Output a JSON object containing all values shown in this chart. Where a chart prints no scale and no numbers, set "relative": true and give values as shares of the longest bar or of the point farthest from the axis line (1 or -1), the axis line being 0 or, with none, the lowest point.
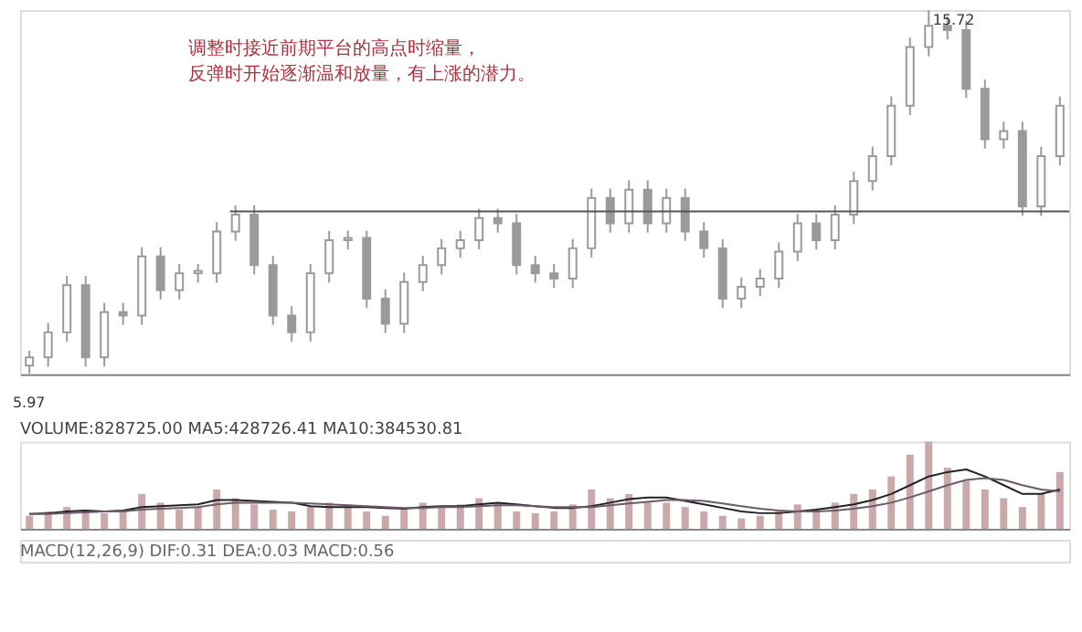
{
  "chart_data": [
    {
      "type": "candlestick",
      "categories": [
        null,
        null,
        null,
        null,
        null,
        null,
        null,
        null,
        null,
        null,
        null,
        null,
        null,
        null,
        null,
        null,
        null,
        null,
        null,
        null,
        null,
        null,
        null,
        null,
        null,
        null,
        null,
        null,
        null,
        null,
        null,
        null,
        null,
        null,
        null,
        null,
        null,
        null,
        null,
        null,
        null,
        null,
        null,
        null,
        null,
        null,
        null,
        null,
        null,
        null,
        null,
        null,
        null,
        null,
        null,
        null
      ],
      "series": [
        {
          "color": "#9a9a9a",
          "ohlc": [
            [
              6.2,
              6.6,
              5.97,
              6.42
            ],
            [
              6.42,
              7.34,
              6.17,
              7.09
            ],
            [
              7.09,
              8.6,
              6.84,
              8.35
            ],
            [
              8.35,
              8.6,
              6.17,
              6.42
            ],
            [
              6.42,
              7.88,
              6.17,
              7.63
            ],
            [
              7.63,
              7.88,
              7.29,
              7.54
            ],
            [
              7.54,
              9.37,
              7.29,
              9.12
            ],
            [
              9.12,
              9.37,
              7.97,
              8.22
            ],
            [
              8.22,
              8.92,
              7.97,
              8.67
            ],
            [
              8.67,
              8.92,
              8.42,
              8.74
            ],
            [
              8.67,
              10.04,
              8.42,
              9.79
            ],
            [
              9.79,
              10.49,
              9.54,
              10.24
            ],
            [
              10.24,
              10.49,
              8.64,
              8.89
            ],
            [
              8.89,
              9.14,
              7.29,
              7.54
            ],
            [
              7.54,
              7.79,
              6.84,
              7.09
            ],
            [
              7.09,
              8.92,
              6.84,
              8.67
            ],
            [
              8.67,
              9.81,
              8.42,
              9.56
            ],
            [
              9.56,
              9.81,
              9.31,
              9.62
            ],
            [
              9.62,
              9.81,
              7.74,
              7.99
            ],
            [
              7.99,
              8.24,
              7.07,
              7.32
            ],
            [
              7.32,
              8.69,
              7.07,
              8.44
            ],
            [
              8.44,
              9.14,
              8.19,
              8.89
            ],
            [
              8.89,
              9.59,
              8.64,
              9.34
            ],
            [
              9.34,
              9.81,
              9.09,
              9.56
            ],
            [
              9.56,
              10.4,
              9.31,
              10.15
            ],
            [
              10.15,
              10.4,
              9.76,
              10.01
            ],
            [
              10.01,
              10.26,
              8.64,
              8.89
            ],
            [
              8.89,
              9.14,
              8.42,
              8.67
            ],
            [
              8.67,
              8.92,
              8.28,
              8.53
            ],
            [
              8.53,
              9.59,
              8.28,
              9.34
            ],
            [
              9.34,
              10.94,
              9.09,
              10.69
            ],
            [
              10.69,
              10.94,
              9.76,
              10.01
            ],
            [
              10.01,
              11.16,
              9.76,
              10.91
            ],
            [
              10.91,
              11.16,
              9.76,
              10.01
            ],
            [
              10.01,
              10.94,
              9.76,
              10.69
            ],
            [
              10.69,
              10.94,
              9.54,
              9.79
            ],
            [
              9.79,
              10.04,
              9.09,
              9.34
            ],
            [
              9.34,
              9.59,
              7.74,
              7.99
            ],
            [
              7.99,
              8.56,
              7.74,
              8.31
            ],
            [
              8.31,
              8.78,
              8.06,
              8.53
            ],
            [
              8.53,
              9.5,
              8.28,
              9.25
            ],
            [
              9.25,
              10.26,
              9.0,
              10.01
            ],
            [
              10.01,
              10.26,
              9.31,
              9.56
            ],
            [
              9.56,
              10.49,
              9.31,
              10.24
            ],
            [
              10.24,
              11.39,
              9.99,
              11.14
            ],
            [
              11.14,
              12.06,
              10.89,
              11.81
            ],
            [
              11.81,
              13.41,
              11.56,
              13.16
            ],
            [
              13.16,
              14.98,
              12.91,
              14.73
            ],
            [
              14.73,
              15.72,
              14.48,
              15.3
            ],
            [
              15.3,
              15.55,
              14.93,
              15.18
            ],
            [
              15.18,
              15.43,
              13.36,
              13.61
            ],
            [
              13.61,
              13.86,
              12.01,
              12.26
            ],
            [
              12.26,
              12.73,
              12.01,
              12.48
            ],
            [
              12.48,
              12.73,
              10.21,
              10.46
            ],
            [
              10.46,
              12.06,
              10.21,
              11.81
            ],
            [
              11.81,
              13.41,
              11.56,
              13.16
            ]
          ]
        }
      ],
      "ylim": [
        5.97,
        15.72
      ],
      "tick_labels": false,
      "grid": false,
      "ref_lines": [
        {
          "axis": "y",
          "value": 10.33,
          "color": "#555555"
        }
      ],
      "annotations": [
        "调整时接近前期平台的高点时缩量，",
        "反弹时开始逐渐温和放量，有上涨的潜力。",
        "15.72",
        "5.97"
      ]
    },
    {
      "type": "bar",
      "relative": true,
      "title": "VOLUME:828725.00  MA5:428726.41  MA10:384530.81",
      "categories": [
        null,
        null,
        null,
        null,
        null,
        null,
        null,
        null,
        null,
        null,
        null,
        null,
        null,
        null,
        null,
        null,
        null,
        null,
        null,
        null,
        null,
        null,
        null,
        null,
        null,
        null,
        null,
        null,
        null,
        null,
        null,
        null,
        null,
        null,
        null,
        null,
        null,
        null,
        null,
        null,
        null,
        null,
        null,
        null,
        null,
        null,
        null,
        null,
        null,
        null,
        null,
        null,
        null,
        null,
        null,
        null
      ],
      "series": [
        {
          "type": "bar",
          "color": "#c9a9a9",
          "values": [
            0.15,
            0.2,
            0.25,
            0.2,
            0.18,
            0.2,
            0.4,
            0.3,
            0.22,
            0.25,
            0.45,
            0.35,
            0.28,
            0.22,
            0.2,
            0.25,
            0.3,
            0.28,
            0.2,
            0.15,
            0.22,
            0.3,
            0.25,
            0.28,
            0.35,
            0.3,
            0.2,
            0.18,
            0.2,
            0.28,
            0.45,
            0.35,
            0.4,
            0.3,
            0.3,
            0.25,
            0.2,
            0.15,
            0.12,
            0.15,
            0.2,
            0.28,
            0.22,
            0.3,
            0.4,
            0.45,
            0.6,
            0.85,
            1.0,
            0.7,
            0.55,
            0.45,
            0.35,
            0.25,
            0.4,
            0.65
          ]
        },
        {
          "type": "line",
          "color": "#222222",
          "values": [
            0.17,
            0.18,
            0.2,
            0.21,
            0.2,
            0.21,
            0.25,
            0.26,
            0.27,
            0.28,
            0.33,
            0.33,
            0.32,
            0.31,
            0.3,
            0.26,
            0.25,
            0.25,
            0.25,
            0.24,
            0.23,
            0.25,
            0.26,
            0.26,
            0.28,
            0.3,
            0.28,
            0.26,
            0.24,
            0.24,
            0.26,
            0.3,
            0.34,
            0.36,
            0.36,
            0.32,
            0.28,
            0.24,
            0.2,
            0.18,
            0.18,
            0.2,
            0.22,
            0.25,
            0.28,
            0.33,
            0.4,
            0.5,
            0.6,
            0.65,
            0.68,
            0.6,
            0.5,
            0.4,
            0.4,
            0.45
          ]
        },
        {
          "type": "line",
          "color": "#6a5a6a",
          "values": [
            0.17,
            0.17,
            0.18,
            0.19,
            0.2,
            0.2,
            0.22,
            0.23,
            0.24,
            0.25,
            0.28,
            0.3,
            0.3,
            0.3,
            0.3,
            0.29,
            0.28,
            0.27,
            0.26,
            0.25,
            0.24,
            0.24,
            0.25,
            0.25,
            0.26,
            0.27,
            0.27,
            0.26,
            0.25,
            0.25,
            0.25,
            0.27,
            0.29,
            0.31,
            0.33,
            0.33,
            0.32,
            0.29,
            0.26,
            0.23,
            0.21,
            0.2,
            0.2,
            0.21,
            0.23,
            0.26,
            0.3,
            0.36,
            0.43,
            0.5,
            0.56,
            0.58,
            0.56,
            0.5,
            0.45,
            0.43
          ]
        }
      ]
    },
    {
      "type": "other",
      "title": "MACD(12,26,9)  DIF:0.31  DEA:0.03  MACD:0.56"
    }
  ]
}
